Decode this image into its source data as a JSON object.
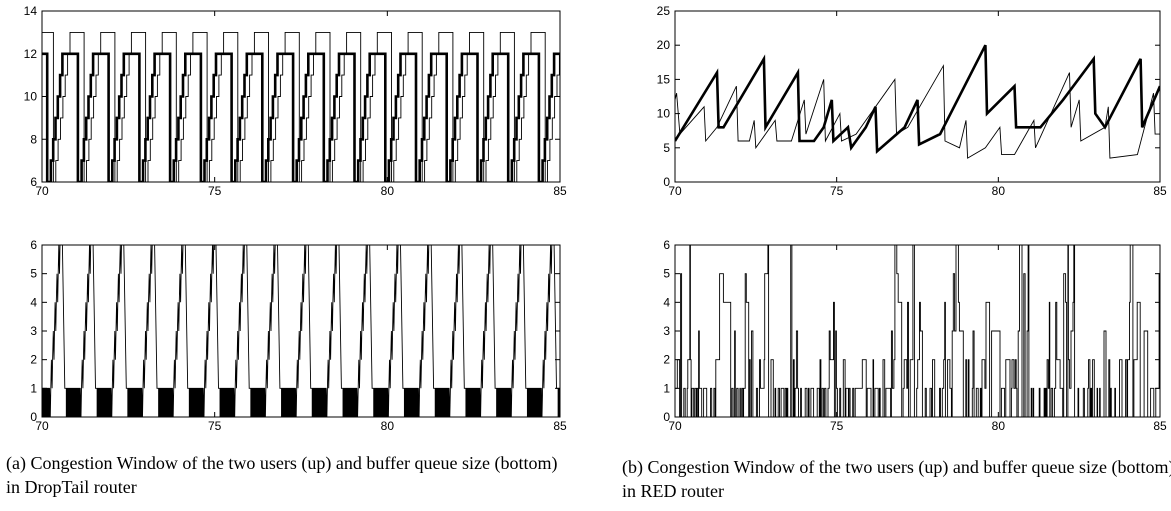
{
  "chart_data": [
    {
      "type": "line",
      "panel": "DropTail router - congestion window",
      "xlim": [
        70,
        85
      ],
      "ylim": [
        6,
        14
      ],
      "xticks": [
        70,
        75,
        80,
        85
      ],
      "yticks": [
        6,
        8,
        10,
        12,
        14
      ],
      "wave": "staircase",
      "series": [
        {
          "style": "thick",
          "period": 0.89,
          "phase": 0.15,
          "low": 6,
          "high": 12,
          "drop_to": 6,
          "plateau_after_drop": 0.04,
          "rise_time": 0.4
        },
        {
          "style": "thin",
          "period": 0.89,
          "phase": 0.33,
          "low": 6,
          "high": 13,
          "drop_to": 6,
          "plateau_after_drop": 0.0,
          "rise_time": 0.48
        }
      ]
    },
    {
      "type": "line",
      "panel": "DropTail router - buffer queue size",
      "xlim": [
        70,
        85
      ],
      "ylim": [
        0,
        6
      ],
      "xticks": [
        70,
        75,
        80,
        85
      ],
      "yticks": [
        0,
        1,
        2,
        3,
        4,
        5,
        6
      ],
      "wave": "queue",
      "series": [
        {
          "style": "thin",
          "period": 0.89,
          "phase": 0.22,
          "high": 6,
          "low": 0,
          "floor": 1
        }
      ]
    },
    {
      "type": "line",
      "panel": "RED router - congestion window",
      "xlim": [
        70,
        85
      ],
      "ylim": [
        0,
        25
      ],
      "xticks": [
        70,
        75,
        80,
        85
      ],
      "yticks": [
        0,
        5,
        10,
        15,
        20,
        25
      ],
      "wave": "sawtooth",
      "series": [
        {
          "style": "thick",
          "points": [
            [
              70.0,
              6
            ],
            [
              71.3,
              16
            ],
            [
              71.35,
              8
            ],
            [
              71.5,
              8
            ],
            [
              72.75,
              18
            ],
            [
              72.8,
              8
            ],
            [
              73.8,
              16
            ],
            [
              73.85,
              6
            ],
            [
              74.3,
              6
            ],
            [
              74.6,
              8
            ],
            [
              74.85,
              12
            ],
            [
              74.9,
              6
            ],
            [
              75.35,
              8
            ],
            [
              75.45,
              5
            ],
            [
              75.9,
              8
            ],
            [
              76.2,
              11
            ],
            [
              76.25,
              4.5
            ],
            [
              77.1,
              8
            ],
            [
              77.5,
              12
            ],
            [
              77.55,
              5.5
            ],
            [
              78.2,
              7
            ],
            [
              79.6,
              20
            ],
            [
              79.65,
              10
            ],
            [
              80.5,
              14
            ],
            [
              80.55,
              8
            ],
            [
              81.3,
              8
            ],
            [
              82.0,
              12
            ],
            [
              82.95,
              18
            ],
            [
              83.0,
              10
            ],
            [
              83.3,
              8
            ],
            [
              84.4,
              18
            ],
            [
              84.45,
              8
            ],
            [
              85.0,
              14
            ]
          ]
        },
        {
          "style": "thin",
          "points": [
            [
              70.0,
              12
            ],
            [
              70.05,
              13
            ],
            [
              70.15,
              7
            ],
            [
              70.9,
              11
            ],
            [
              70.95,
              6
            ],
            [
              71.3,
              8
            ],
            [
              71.9,
              14
            ],
            [
              71.95,
              6
            ],
            [
              72.3,
              6
            ],
            [
              72.45,
              9
            ],
            [
              72.5,
              5
            ],
            [
              73.1,
              9
            ],
            [
              73.15,
              6
            ],
            [
              73.6,
              6
            ],
            [
              74.0,
              12
            ],
            [
              74.05,
              7
            ],
            [
              74.6,
              15
            ],
            [
              74.65,
              6
            ],
            [
              75.1,
              10
            ],
            [
              75.15,
              6
            ],
            [
              75.6,
              7
            ],
            [
              76.8,
              15
            ],
            [
              76.85,
              7
            ],
            [
              77.2,
              8
            ],
            [
              78.3,
              17
            ],
            [
              78.35,
              6
            ],
            [
              78.8,
              5
            ],
            [
              79.0,
              9
            ],
            [
              79.05,
              3.5
            ],
            [
              79.6,
              5
            ],
            [
              80.05,
              8
            ],
            [
              80.1,
              4
            ],
            [
              80.5,
              4
            ],
            [
              81.1,
              9
            ],
            [
              81.15,
              5
            ],
            [
              82.2,
              16
            ],
            [
              82.25,
              8
            ],
            [
              82.5,
              12
            ],
            [
              82.55,
              6
            ],
            [
              83.3,
              8
            ],
            [
              83.4,
              11
            ],
            [
              83.45,
              3.5
            ],
            [
              84.3,
              4
            ],
            [
              84.8,
              13
            ],
            [
              84.85,
              7
            ],
            [
              85.0,
              7
            ]
          ]
        }
      ]
    },
    {
      "type": "line",
      "panel": "RED router - buffer queue size",
      "xlim": [
        70,
        85
      ],
      "ylim": [
        0,
        6
      ],
      "xticks": [
        70,
        75,
        80,
        85
      ],
      "yticks": [
        0,
        1,
        2,
        3,
        4,
        5,
        6
      ],
      "wave": "noise",
      "series": [
        {
          "style": "thin",
          "seed": 7,
          "high": 6,
          "low": 0
        }
      ]
    }
  ],
  "captions": {
    "a": "(a) Congestion Window of the two users (up) and buffer queue size (bottom) in DropTail router",
    "b": "(b) Congestion Window of the two users (up) and buffer queue size (bottom) in RED router"
  }
}
